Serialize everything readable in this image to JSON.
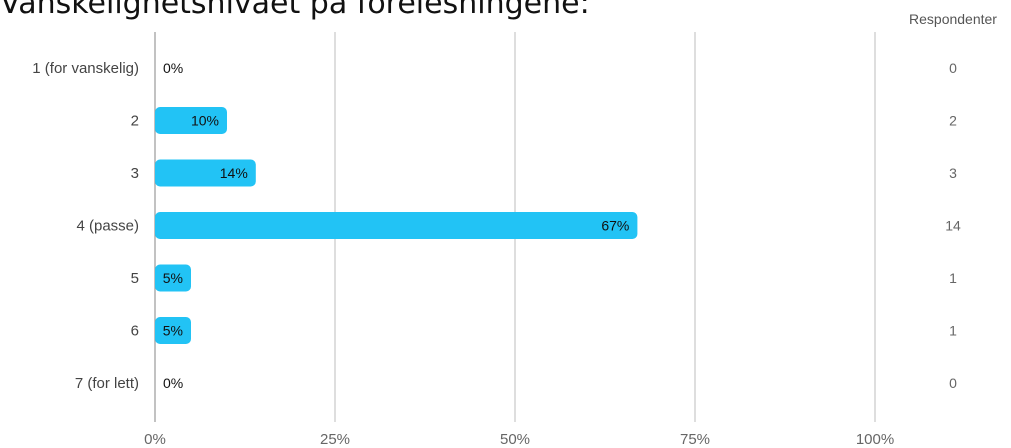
{
  "chart_data": {
    "type": "bar",
    "orientation": "horizontal",
    "title": "Vanskelighetsnivået på forelesningene:",
    "categories": [
      "1 (for vanskelig)",
      "2",
      "3",
      "4 (passe)",
      "5",
      "6",
      "7 (for lett)"
    ],
    "values": [
      0,
      10,
      14,
      67,
      5,
      5,
      0
    ],
    "value_labels": [
      "0%",
      "10%",
      "14%",
      "67%",
      "5%",
      "5%",
      "0%"
    ],
    "counts_header": "Respondenter",
    "counts": [
      "0",
      "2",
      "3",
      "14",
      "1",
      "1",
      "0"
    ],
    "xlim": [
      0,
      100
    ],
    "xticks": [
      0,
      25,
      50,
      75,
      100
    ],
    "xtick_labels": [
      "0%",
      "25%",
      "50%",
      "75%",
      "100%"
    ],
    "grid": true,
    "bar_color": "#22c3f5",
    "grid_color": "#c8c8c8"
  }
}
